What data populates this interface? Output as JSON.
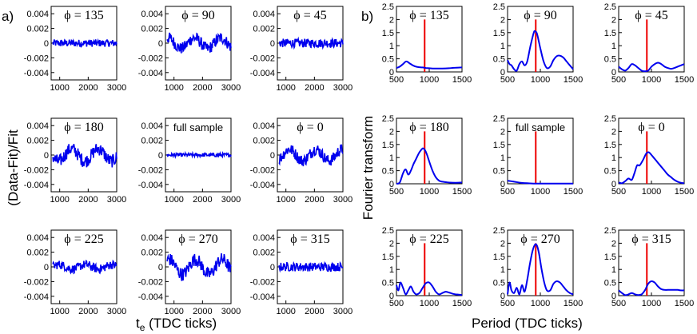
{
  "figure": {
    "label_a": "a)",
    "label_b": "b)",
    "ylabel_a": "(Data-Fit)/Fit",
    "xlabel_a_main": "t",
    "xlabel_a_sub": "e",
    "xlabel_a_rest": " (TDC ticks)",
    "ylabel_b": "Fourier transform",
    "xlabel_b": "Period (TDC ticks)"
  },
  "chart_data": [
    {
      "panel": "a",
      "type": "line",
      "xlim": [
        700,
        3000
      ],
      "ylim": [
        -0.005,
        0.005
      ],
      "xticks": [
        "1000",
        "2000",
        "3000"
      ],
      "yticks": [
        "0.004",
        "0.002",
        "0",
        "-0.002",
        "-0.004"
      ],
      "ytick_values": [
        0.004,
        0.002,
        0,
        -0.002,
        -0.004
      ],
      "xtick_values": [
        1000,
        2000,
        3000
      ],
      "series_color": "#0000ee",
      "subplots": [
        {
          "title": "ϕ = 135",
          "style": "serif",
          "amp": 0.0005,
          "osc": 0.0
        },
        {
          "title": "ϕ = 90",
          "style": "serif",
          "amp": 0.0008,
          "osc": 0.0012
        },
        {
          "title": "ϕ = 45",
          "style": "serif",
          "amp": 0.0006,
          "osc": 0.0
        },
        {
          "title": "ϕ = 180",
          "style": "serif",
          "amp": 0.0009,
          "osc": 0.0014
        },
        {
          "title": "full sample",
          "style": "sans",
          "amp": 0.00025,
          "osc": 0.0
        },
        {
          "title": "ϕ = 0",
          "style": "serif",
          "amp": 0.0008,
          "osc": 0.0013
        },
        {
          "title": "ϕ = 225",
          "style": "serif",
          "amp": 0.0006,
          "osc": 0.0005
        },
        {
          "title": "ϕ = 270",
          "style": "serif",
          "amp": 0.0009,
          "osc": 0.0017
        },
        {
          "title": "ϕ = 315",
          "style": "serif",
          "amp": 0.0006,
          "osc": 0.0
        }
      ]
    },
    {
      "panel": "b",
      "type": "line",
      "xlim": [
        500,
        1500
      ],
      "ylim": [
        0,
        2.5
      ],
      "xticks": [
        "500",
        "1000",
        "1500"
      ],
      "xtick_values": [
        500,
        1000,
        1500
      ],
      "yticks": [
        "2.5",
        "2",
        "1.5",
        "1",
        "0.5",
        "0"
      ],
      "ytick_values": [
        2.5,
        2,
        1.5,
        1,
        0.5,
        0
      ],
      "series_color": "#0000ee",
      "marker_color": "#ee0000",
      "marker_x": 930,
      "marker_height": 2.0,
      "subplots": [
        {
          "title": "ϕ = 135",
          "style": "serif",
          "x": [
            500,
            550,
            600,
            650,
            700,
            750,
            800,
            850,
            900,
            950,
            1000,
            1050,
            1100,
            1200,
            1300,
            1400,
            1500
          ],
          "y": [
            0.15,
            0.2,
            0.3,
            0.4,
            0.33,
            0.25,
            0.2,
            0.18,
            0.17,
            0.15,
            0.14,
            0.13,
            0.13,
            0.13,
            0.14,
            0.16,
            0.17
          ]
        },
        {
          "title": "ϕ = 90",
          "style": "serif",
          "x": [
            500,
            530,
            560,
            600,
            640,
            680,
            720,
            760,
            800,
            850,
            900,
            920,
            950,
            1000,
            1050,
            1100,
            1150,
            1200,
            1250,
            1300,
            1350,
            1400,
            1450,
            1500
          ],
          "y": [
            0.45,
            0.3,
            0.25,
            0.1,
            0.05,
            0.3,
            0.4,
            0.25,
            0.4,
            1.0,
            1.5,
            1.55,
            1.45,
            0.9,
            0.4,
            0.15,
            0.2,
            0.45,
            0.6,
            0.62,
            0.55,
            0.4,
            0.25,
            0.1
          ]
        },
        {
          "title": "ϕ = 45",
          "style": "serif",
          "x": [
            500,
            550,
            600,
            650,
            700,
            750,
            800,
            850,
            900,
            950,
            1000,
            1050,
            1100,
            1150,
            1200,
            1250,
            1300,
            1350,
            1400,
            1450,
            1500
          ],
          "y": [
            0.2,
            0.1,
            0.05,
            0.15,
            0.3,
            0.25,
            0.15,
            0.05,
            0.02,
            0.05,
            0.2,
            0.3,
            0.35,
            0.3,
            0.2,
            0.15,
            0.12,
            0.15,
            0.2,
            0.25,
            0.3
          ]
        },
        {
          "title": "ϕ = 180",
          "style": "serif",
          "x": [
            500,
            550,
            600,
            640,
            680,
            720,
            760,
            800,
            850,
            900,
            930,
            960,
            1000,
            1050,
            1100,
            1150,
            1200,
            1300,
            1400,
            1500
          ],
          "y": [
            0.0,
            0.05,
            0.4,
            0.55,
            0.35,
            0.5,
            0.75,
            0.95,
            1.2,
            1.35,
            1.3,
            1.15,
            0.85,
            0.5,
            0.25,
            0.12,
            0.08,
            0.05,
            0.04,
            0.05
          ]
        },
        {
          "title": "full sample",
          "style": "sans",
          "x": [
            500,
            600,
            700,
            800,
            900,
            1000,
            1100,
            1200,
            1300,
            1400,
            1500
          ],
          "y": [
            0.12,
            0.08,
            0.04,
            0.02,
            0.01,
            0.01,
            0.01,
            0.01,
            0.01,
            0.01,
            0.01
          ]
        },
        {
          "title": "ϕ = 0",
          "style": "serif",
          "x": [
            500,
            550,
            600,
            650,
            700,
            740,
            780,
            820,
            870,
            920,
            960,
            1000,
            1050,
            1100,
            1150,
            1200,
            1250,
            1300,
            1350,
            1400,
            1450,
            1500
          ],
          "y": [
            0.05,
            0.02,
            0.1,
            0.2,
            0.15,
            0.4,
            0.7,
            0.7,
            0.9,
            1.15,
            1.2,
            1.1,
            0.95,
            0.8,
            0.65,
            0.5,
            0.35,
            0.25,
            0.15,
            0.08,
            0.04,
            0.02
          ]
        },
        {
          "title": "ϕ = 225",
          "style": "serif",
          "x": [
            500,
            530,
            560,
            600,
            640,
            680,
            720,
            760,
            800,
            850,
            900,
            950,
            1000,
            1050,
            1100,
            1150,
            1200,
            1250,
            1300,
            1350,
            1400,
            1450,
            1500
          ],
          "y": [
            0.4,
            0.2,
            0.5,
            0.3,
            0.05,
            0.2,
            0.35,
            0.15,
            0.05,
            0.1,
            0.3,
            0.48,
            0.5,
            0.35,
            0.15,
            0.05,
            0.1,
            0.15,
            0.12,
            0.08,
            0.05,
            0.04,
            0.02
          ]
        },
        {
          "title": "ϕ = 270",
          "style": "serif",
          "x": [
            500,
            530,
            560,
            600,
            640,
            680,
            720,
            760,
            800,
            840,
            880,
            920,
            950,
            980,
            1020,
            1060,
            1100,
            1150,
            1200,
            1250,
            1300,
            1350,
            1400,
            1450,
            1500
          ],
          "y": [
            0.05,
            0.5,
            0.2,
            0.1,
            0.3,
            0.05,
            0.4,
            0.15,
            0.6,
            1.2,
            1.7,
            1.95,
            1.9,
            1.6,
            1.0,
            0.5,
            0.2,
            0.2,
            0.45,
            0.55,
            0.5,
            0.35,
            0.2,
            0.1,
            0.05
          ]
        },
        {
          "title": "ϕ = 315",
          "style": "serif",
          "x": [
            500,
            550,
            600,
            650,
            700,
            750,
            800,
            850,
            900,
            950,
            1000,
            1050,
            1100,
            1150,
            1200,
            1250,
            1300,
            1350,
            1400,
            1450,
            1500
          ],
          "y": [
            0.2,
            0.1,
            0.02,
            0.05,
            0.1,
            0.05,
            0.02,
            0.05,
            0.2,
            0.45,
            0.55,
            0.5,
            0.35,
            0.25,
            0.22,
            0.22,
            0.22,
            0.22,
            0.22,
            0.2,
            0.2
          ]
        }
      ]
    }
  ]
}
